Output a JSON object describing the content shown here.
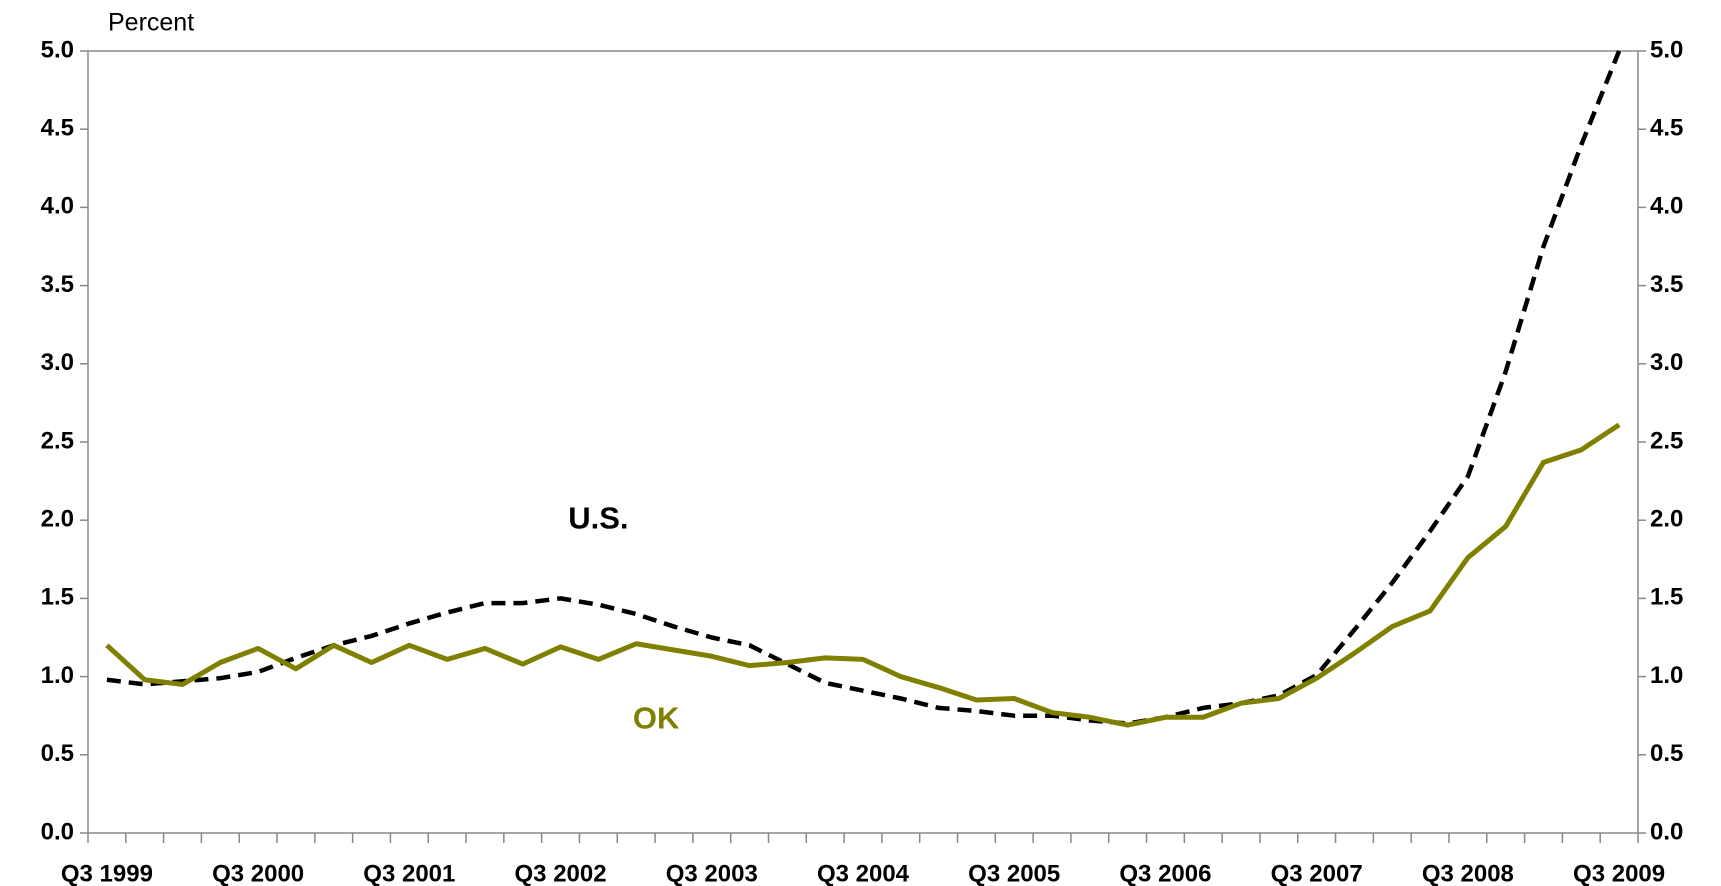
{
  "chart_data": {
    "type": "line",
    "y_axis_label": "Percent",
    "categories": [
      "Q3 1999",
      null,
      null,
      null,
      "Q3 2000",
      null,
      null,
      null,
      "Q3 2001",
      null,
      null,
      null,
      "Q3 2002",
      null,
      null,
      null,
      "Q3 2003",
      null,
      null,
      null,
      "Q3 2004",
      null,
      null,
      null,
      "Q3 2005",
      null,
      null,
      null,
      "Q3 2006",
      null,
      null,
      null,
      "Q3 2007",
      null,
      null,
      null,
      "Q3 2008",
      null,
      null,
      null,
      "Q3 2009"
    ],
    "series": [
      {
        "name": "U.S.",
        "color": "#000000",
        "dash": true,
        "values": [
          0.98,
          0.95,
          0.97,
          0.99,
          1.03,
          1.12,
          1.2,
          1.26,
          1.34,
          1.41,
          1.47,
          1.47,
          1.5,
          1.46,
          1.4,
          1.32,
          1.25,
          1.2,
          1.08,
          0.96,
          0.91,
          0.86,
          0.8,
          0.78,
          0.75,
          0.75,
          0.72,
          0.7,
          0.74,
          0.8,
          0.83,
          0.88,
          1.01,
          1.3,
          1.6,
          1.93,
          2.28,
          2.95,
          3.75,
          4.4,
          5.0
        ]
      },
      {
        "name": "OK",
        "color": "#808000",
        "dash": false,
        "values": [
          1.2,
          0.98,
          0.95,
          1.09,
          1.18,
          1.05,
          1.2,
          1.09,
          1.2,
          1.11,
          1.18,
          1.08,
          1.19,
          1.11,
          1.21,
          1.17,
          1.13,
          1.07,
          1.09,
          1.12,
          1.11,
          1.0,
          0.93,
          0.85,
          0.86,
          0.77,
          0.74,
          0.69,
          0.74,
          0.74,
          0.83,
          0.86,
          0.99,
          1.15,
          1.32,
          1.42,
          1.76,
          1.96,
          2.37,
          2.45,
          2.61
        ]
      }
    ],
    "ylim": [
      0,
      5
    ],
    "yticks": [
      {
        "value": 0,
        "label": "0.0"
      },
      {
        "value": 0.5,
        "label": "0.5"
      },
      {
        "value": 1,
        "label": "1.0"
      },
      {
        "value": 1.5,
        "label": "1.5"
      },
      {
        "value": 2,
        "label": "2.0"
      },
      {
        "value": 2.5,
        "label": "2.5"
      },
      {
        "value": 3,
        "label": "3.0"
      },
      {
        "value": 3.5,
        "label": "3.5"
      },
      {
        "value": 4,
        "label": "4.0"
      },
      {
        "value": 4.5,
        "label": "4.5"
      },
      {
        "value": 5,
        "label": "5.0"
      }
    ],
    "y2lim": [
      0,
      5
    ],
    "y2ticks": [
      {
        "value": 0,
        "label": "0.0"
      },
      {
        "value": 0.5,
        "label": "0.5"
      },
      {
        "value": 1,
        "label": "1.0"
      },
      {
        "value": 1.5,
        "label": "1.5"
      },
      {
        "value": 2,
        "label": "2.0"
      },
      {
        "value": 2.5,
        "label": "2.5"
      },
      {
        "value": 3,
        "label": "3.0"
      },
      {
        "value": 3.5,
        "label": "3.5"
      },
      {
        "value": 4,
        "label": "4.0"
      },
      {
        "value": 4.5,
        "label": "4.5"
      },
      {
        "value": 5,
        "label": "5.0"
      }
    ],
    "grid": false
  }
}
